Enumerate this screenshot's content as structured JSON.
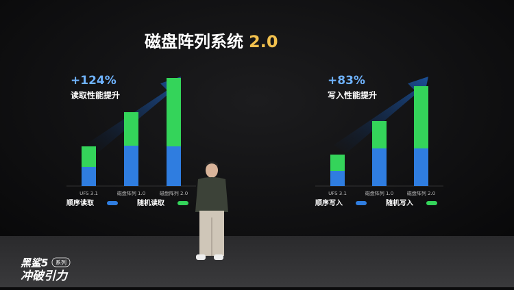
{
  "title": "磁盘阵列系统",
  "title_version": "2.0",
  "chart_data": [
    {
      "type": "bar",
      "stacked": true,
      "annotation": "+124%",
      "subtitle": "读取性能提升",
      "categories": [
        "UFS 3.1",
        "磁盘阵列 1.0",
        "磁盘阵列 2.0"
      ],
      "series": [
        {
          "name": "顺序读取",
          "color": "#2f7de0",
          "values": [
            28,
            59,
            58
          ]
        },
        {
          "name": "随机读取",
          "color": "#34d45a",
          "values": [
            30,
            49,
            100
          ]
        }
      ],
      "ylim": [
        0,
        160
      ]
    },
    {
      "type": "bar",
      "stacked": true,
      "annotation": "+83%",
      "subtitle": "写入性能提升",
      "categories": [
        "UFS 3.1",
        "磁盘阵列 1.0",
        "磁盘阵列 2.0"
      ],
      "series": [
        {
          "name": "顺序写入",
          "color": "#2f7de0",
          "values": [
            22,
            55,
            55
          ]
        },
        {
          "name": "随机写入",
          "color": "#34d45a",
          "values": [
            24,
            40,
            91
          ]
        }
      ],
      "ylim": [
        0,
        160
      ]
    }
  ],
  "logo": {
    "brand": "黑鲨5",
    "series": "系列",
    "slogan": "冲破引力"
  }
}
